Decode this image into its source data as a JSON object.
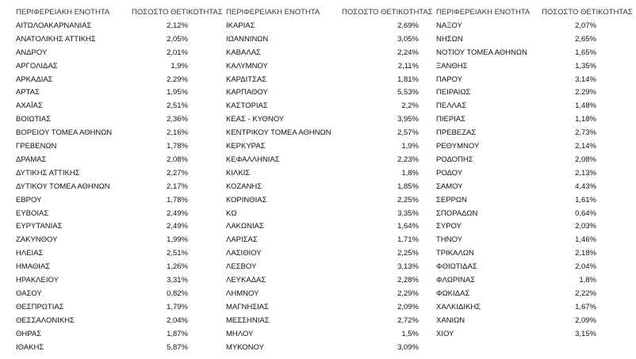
{
  "table": {
    "groups": [
      {
        "headers": [
          "ΠΕΡΙΦΕΡΕΙΑΚΗ ΕΝΟΤΗΤΑ",
          "ΠΟΣΟΣΤΟ ΘΕΤΙΚΟΤΗΤΑΣ"
        ],
        "rows": [
          [
            "ΑΙΤΩΛΟΑΚΑΡΝΑΝΙΑΣ",
            "2,12%"
          ],
          [
            "ΑΝΑΤΟΛΙΚΗΣ ΑΤΤΙΚΗΣ",
            "2,05%"
          ],
          [
            "ΑΝΔΡΟΥ",
            "2,01%"
          ],
          [
            "ΑΡΓΟΛΙΔΑΣ",
            "1,9%"
          ],
          [
            "ΑΡΚΑΔΙΑΣ",
            "2,29%"
          ],
          [
            "ΑΡΤΑΣ",
            "1,95%"
          ],
          [
            "ΑΧΑΪΑΣ",
            "2,51%"
          ],
          [
            "ΒΟΙΩΤΙΑΣ",
            "2,36%"
          ],
          [
            "ΒΟΡΕΙΟΥ ΤΟΜΕΑ ΑΘΗΝΩΝ",
            "2,16%"
          ],
          [
            "ΓΡΕΒΕΝΩΝ",
            "1,78%"
          ],
          [
            "ΔΡΑΜΑΣ",
            "2,08%"
          ],
          [
            "ΔΥΤΙΚΗΣ ΑΤΤΙΚΗΣ",
            "2,27%"
          ],
          [
            "ΔΥΤΙΚΟΥ ΤΟΜΕΑ ΑΘΗΝΩΝ",
            "2,17%"
          ],
          [
            "ΕΒΡΟΥ",
            "1,78%"
          ],
          [
            "ΕΥΒΟΙΑΣ",
            "2,49%"
          ],
          [
            "ΕΥΡΥΤΑΝΙΑΣ",
            "2,49%"
          ],
          [
            "ΖΑΚΥΝΘΟΥ",
            "1,99%"
          ],
          [
            "ΗΛΕΙΑΣ",
            "2,51%"
          ],
          [
            "ΗΜΑΘΙΑΣ",
            "1,26%"
          ],
          [
            "ΗΡΑΚΛΕΙΟΥ",
            "3,31%"
          ],
          [
            "ΘΑΣΟΥ",
            "0,82%"
          ],
          [
            "ΘΕΣΠΡΩΤΙΑΣ",
            "1,79%"
          ],
          [
            "ΘΕΣΣΑΛΟΝΙΚΗΣ",
            "2,04%"
          ],
          [
            "ΘΗΡΑΣ",
            "1,87%"
          ],
          [
            "ΙΘΑΚΗΣ",
            "5,87%"
          ]
        ]
      },
      {
        "headers": [
          "ΠΕΡΙΦΕΡΕΙΑΚΗ ΕΝΟΤΗΤΑ",
          "ΠΟΣΟΣΤΟ ΘΕΤΙΚΟΤΗΤΑΣ"
        ],
        "rows": [
          [
            "ΙΚΑΡΙΑΣ",
            "2,69%"
          ],
          [
            "ΙΩΑΝΝΙΝΩΝ",
            "3,05%"
          ],
          [
            "ΚΑΒΑΛΑΣ",
            "2,24%"
          ],
          [
            "ΚΑΛΥΜΝΟΥ",
            "2,11%"
          ],
          [
            "ΚΑΡΔΙΤΣΑΣ",
            "1,81%"
          ],
          [
            "ΚΑΡΠΑΘΟΥ",
            "5,53%"
          ],
          [
            "ΚΑΣΤΟΡΙΑΣ",
            "2,2%"
          ],
          [
            "ΚΕΑΣ - ΚΥΘΝΟΥ",
            "3,95%"
          ],
          [
            "ΚΕΝΤΡΙΚΟΥ ΤΟΜΕΑ ΑΘΗΝΩΝ",
            "2,57%"
          ],
          [
            "ΚΕΡΚΥΡΑΣ",
            "1,9%"
          ],
          [
            "ΚΕΦΑΛΛΗΝΙΑΣ",
            "2,23%"
          ],
          [
            "ΚΙΛΚΙΣ",
            "1,8%"
          ],
          [
            "ΚΟΖΑΝΗΣ",
            "1,85%"
          ],
          [
            "ΚΟΡΙΝΘΙΑΣ",
            "2,25%"
          ],
          [
            "ΚΩ",
            "3,35%"
          ],
          [
            "ΛΑΚΩΝΙΑΣ",
            "1,64%"
          ],
          [
            "ΛΑΡΙΣΑΣ",
            "1,71%"
          ],
          [
            "ΛΑΣΙΘΙΟΥ",
            "2,25%"
          ],
          [
            "ΛΕΣΒΟΥ",
            "3,13%"
          ],
          [
            "ΛΕΥΚΑΔΑΣ",
            "2,28%"
          ],
          [
            "ΛΗΜΝΟΥ",
            "2,29%"
          ],
          [
            "ΜΑΓΝΗΣΙΑΣ",
            "2,09%"
          ],
          [
            "ΜΕΣΣΗΝΙΑΣ",
            "2,72%"
          ],
          [
            "ΜΗΛΟΥ",
            "1,5%"
          ],
          [
            "ΜΥΚΟΝΟΥ",
            "3,09%"
          ]
        ]
      },
      {
        "headers": [
          "ΠΕΡΙΦΕΡΕΙΑΚΗ ΕΝΟΤΗΤΑ",
          "ΠΟΣΟΣΤΟ ΘΕΤΙΚΟΤΗΤΑΣ"
        ],
        "rows": [
          [
            "ΝΑΞΟΥ",
            "2,07%"
          ],
          [
            "ΝΗΣΩΝ",
            "2,65%"
          ],
          [
            "ΝΟΤΙΟΥ ΤΟΜΕΑ ΑΘΗΝΩΝ",
            "1,65%"
          ],
          [
            "ΞΑΝΘΗΣ",
            "1,35%"
          ],
          [
            "ΠΑΡΟΥ",
            "3,14%"
          ],
          [
            "ΠΕΙΡΑΙΩΣ",
            "2,29%"
          ],
          [
            "ΠΕΛΛΑΣ",
            "1,48%"
          ],
          [
            "ΠΙΕΡΙΑΣ",
            "1,18%"
          ],
          [
            "ΠΡΕΒΕΖΑΣ",
            "2,73%"
          ],
          [
            "ΡΕΘΥΜΝΟΥ",
            "2,14%"
          ],
          [
            "ΡΟΔΟΠΗΣ",
            "2,08%"
          ],
          [
            "ΡΟΔΟΥ",
            "2,13%"
          ],
          [
            "ΣΑΜΟΥ",
            "4,43%"
          ],
          [
            "ΣΕΡΡΩΝ",
            "1,61%"
          ],
          [
            "ΣΠΟΡΑΔΩΝ",
            "0,64%"
          ],
          [
            "ΣΥΡΟΥ",
            "2,03%"
          ],
          [
            "ΤΗΝΟΥ",
            "1,46%"
          ],
          [
            "ΤΡΙΚΑΛΩΝ",
            "2,18%"
          ],
          [
            "ΦΘΙΩΤΙΔΑΣ",
            "2,04%"
          ],
          [
            "ΦΛΩΡΙΝΑΣ",
            "1,8%"
          ],
          [
            "ΦΩΚΙΔΑΣ",
            "2,22%"
          ],
          [
            "ΧΑΛΚΙΔΙΚΗΣ",
            "1,67%"
          ],
          [
            "ΧΑΝΙΩΝ",
            "2,09%"
          ],
          [
            "ΧΙΟΥ",
            "3,15%"
          ]
        ]
      }
    ]
  }
}
